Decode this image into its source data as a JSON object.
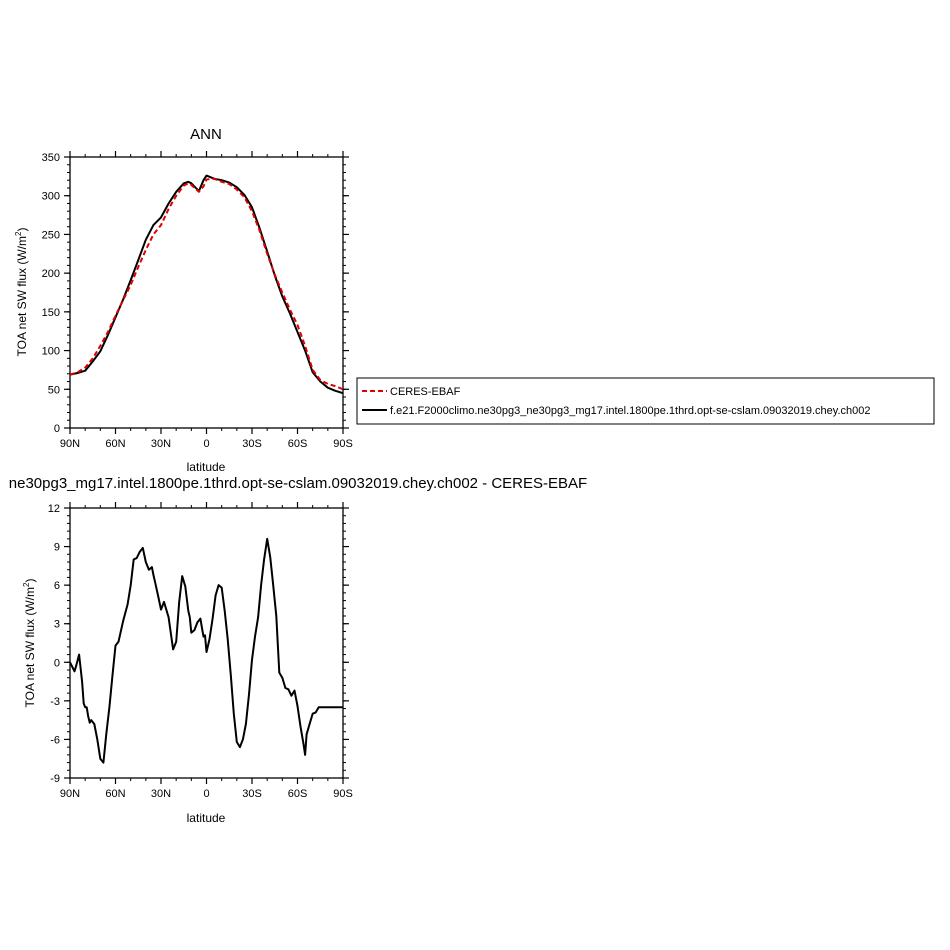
{
  "chart_data": [
    {
      "type": "line",
      "title": "ANN",
      "xlabel": "latitude",
      "ylabel": "TOA net SW flux (W/m",
      "ylabel_sup": "2",
      "ylabel_close": ")",
      "xlim": [
        90,
        -90
      ],
      "ylim": [
        0,
        350
      ],
      "xticks": [
        90,
        60,
        30,
        0,
        -30,
        -60,
        -90
      ],
      "xtick_labels": [
        "90N",
        "60N",
        "30N",
        "0",
        "30S",
        "60S",
        "90S"
      ],
      "yticks": [
        0,
        50,
        100,
        150,
        200,
        250,
        300,
        350
      ],
      "ytick_labels": [
        "0",
        "50",
        "100",
        "150",
        "200",
        "250",
        "300",
        "350"
      ],
      "series": [
        {
          "name": "CERES-EBAF",
          "color": "#e00000",
          "dash": "dashed",
          "x": [
            90,
            85,
            80,
            75,
            70,
            65,
            60,
            55,
            50,
            45,
            40,
            35,
            30,
            25,
            20,
            15,
            12,
            10,
            5,
            2,
            0,
            -5,
            -10,
            -15,
            -20,
            -25,
            -30,
            -35,
            -40,
            -45,
            -50,
            -55,
            -60,
            -65,
            -70,
            -75,
            -80,
            -85,
            -90
          ],
          "y": [
            69,
            72,
            78,
            90,
            106,
            124,
            145,
            165,
            185,
            208,
            230,
            250,
            262,
            283,
            300,
            313,
            316,
            314,
            305,
            312,
            321,
            322,
            318,
            315,
            308,
            298,
            280,
            255,
            225,
            198,
            175,
            153,
            133,
            106,
            75,
            62,
            57,
            54,
            50
          ]
        },
        {
          "name": "f.e21.F2000climo.ne30pg3_ne30pg3_mg17.intel.1800pe.1thrd.opt-se-cslam.09032019.chey.ch002",
          "color": "#000000",
          "dash": "solid",
          "x": [
            90,
            85,
            80,
            75,
            70,
            65,
            60,
            55,
            50,
            45,
            40,
            35,
            30,
            25,
            20,
            15,
            12,
            10,
            5,
            2,
            0,
            -5,
            -10,
            -15,
            -20,
            -25,
            -30,
            -35,
            -40,
            -45,
            -50,
            -55,
            -60,
            -65,
            -70,
            -75,
            -80,
            -85,
            -90
          ],
          "y": [
            69,
            71,
            74,
            86,
            99,
            120,
            143,
            166,
            191,
            217,
            243,
            262,
            272,
            290,
            305,
            316,
            318,
            316,
            306,
            320,
            326,
            322,
            320,
            317,
            311,
            301,
            285,
            258,
            228,
            197,
            170,
            148,
            124,
            100,
            72,
            60,
            52,
            48,
            45
          ]
        }
      ],
      "legend": "right"
    },
    {
      "type": "line",
      "title": "ne30pg3_mg17.intel.1800pe.1thrd.opt-se-cslam.09032019.chey.ch002 - CERES-EBAF",
      "xlabel": "latitude",
      "ylabel": "TOA net SW flux (W/m",
      "ylabel_sup": "2",
      "ylabel_close": ")",
      "xlim": [
        90,
        -90
      ],
      "ylim": [
        -9,
        12
      ],
      "xticks": [
        90,
        60,
        30,
        0,
        -30,
        -60,
        -90
      ],
      "xtick_labels": [
        "90N",
        "60N",
        "30N",
        "0",
        "30S",
        "60S",
        "90S"
      ],
      "yticks": [
        -9,
        -6,
        -3,
        0,
        3,
        6,
        9,
        12
      ],
      "ytick_labels": [
        "-9",
        "-6",
        "-3",
        "0",
        "3",
        "6",
        "9",
        "12"
      ],
      "series": [
        {
          "color": "#000000",
          "dash": "solid",
          "x": [
            90,
            87,
            86,
            84,
            82,
            81,
            80,
            79,
            78,
            77,
            76,
            74,
            72,
            70,
            68,
            66,
            64,
            62,
            60,
            58,
            55,
            52,
            50,
            48,
            46,
            44,
            42,
            40,
            38,
            36,
            35,
            34,
            32,
            30,
            28,
            25,
            22,
            20,
            18,
            16,
            14,
            12,
            11,
            10,
            8,
            6,
            4,
            3,
            2,
            1,
            0,
            -2,
            -4,
            -6,
            -8,
            -10,
            -12,
            -14,
            -16,
            -18,
            -20,
            -22,
            -24,
            -26,
            -28,
            -30,
            -32,
            -34,
            -36,
            -38,
            -40,
            -42,
            -44,
            -46,
            -48,
            -50,
            -52,
            -54,
            -56,
            -58,
            -60,
            -62,
            -64,
            -65,
            -66,
            -68,
            -70,
            -72,
            -74,
            -76,
            -78,
            -80,
            -82,
            -84,
            -86,
            -88,
            -90
          ],
          "y": [
            0,
            -0.7,
            -0.3,
            0.6,
            -1.5,
            -3.2,
            -3.5,
            -3.5,
            -4.2,
            -4.7,
            -4.5,
            -4.8,
            -6.0,
            -7.5,
            -7.8,
            -5.5,
            -3.5,
            -1.0,
            1.3,
            1.6,
            3.2,
            4.5,
            6.0,
            8.0,
            8.1,
            8.6,
            8.9,
            7.8,
            7.2,
            7.4,
            6.8,
            6.3,
            5.2,
            4.1,
            4.7,
            3.5,
            1.0,
            1.6,
            4.7,
            6.7,
            5.9,
            4.0,
            3.5,
            2.3,
            2.5,
            3.1,
            3.4,
            2.7,
            2.0,
            2.1,
            0.8,
            1.8,
            3.4,
            5.2,
            6.0,
            5.8,
            4.0,
            1.8,
            -1.0,
            -4.0,
            -6.2,
            -6.6,
            -6.0,
            -4.8,
            -2.5,
            0.2,
            2.0,
            3.5,
            6.0,
            8.0,
            9.6,
            8.2,
            6.0,
            3.6,
            -0.8,
            -1.2,
            -2.0,
            -2.1,
            -2.6,
            -2.2,
            -3.4,
            -5.0,
            -6.4,
            -7.2,
            -5.6,
            -4.8,
            -4.0,
            -3.9,
            -3.5,
            -3.5,
            -3.5,
            -3.5,
            -3.5,
            -3.5,
            -3.5,
            -3.5,
            -3.5
          ]
        }
      ]
    }
  ]
}
